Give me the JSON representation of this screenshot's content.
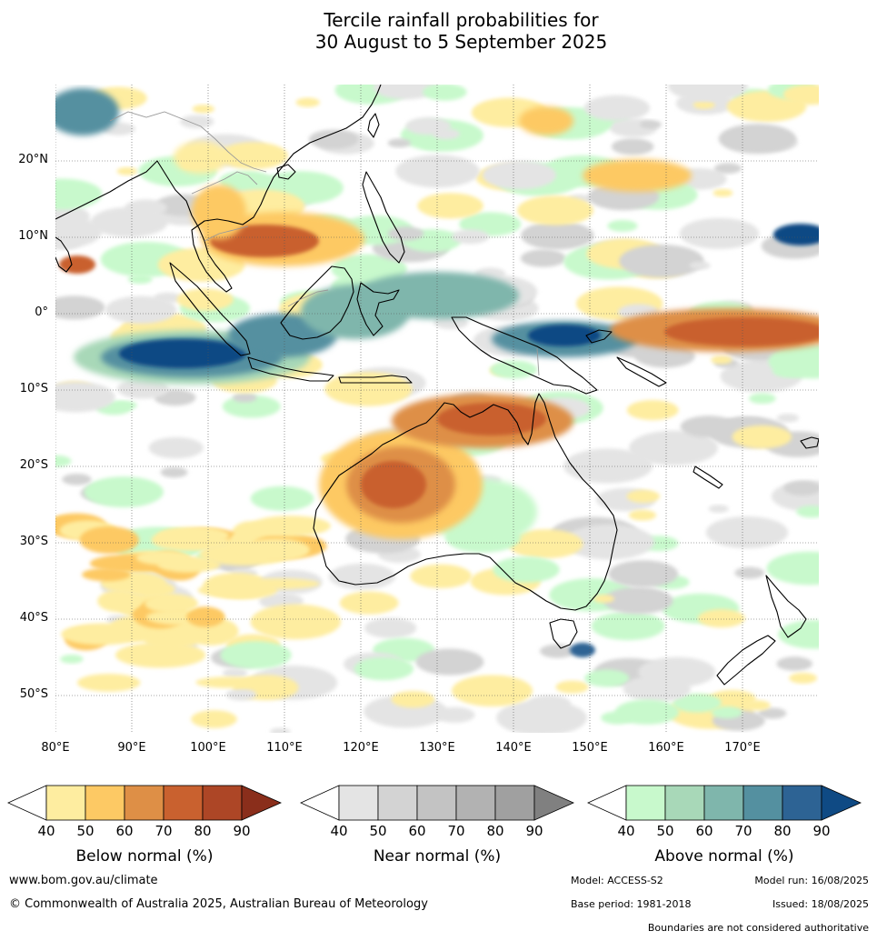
{
  "title": {
    "line1": "Tercile rainfall probabilities for",
    "line2": "30 August to 5 September 2025"
  },
  "map": {
    "lat_labels": [
      "20°N",
      "10°N",
      "0°",
      "10°S",
      "20°S",
      "30°S",
      "40°S",
      "50°S"
    ],
    "lon_labels": [
      "80°E",
      "90°E",
      "100°E",
      "110°E",
      "120°E",
      "130°E",
      "140°E",
      "150°E",
      "160°E",
      "170°E"
    ],
    "colors": {
      "ocean_bg": "#ffffff",
      "coast": "#000000",
      "border": "#999999"
    }
  },
  "legends": [
    {
      "title": "Below normal (%)",
      "ticks": [
        "40",
        "50",
        "60",
        "70",
        "80",
        "90"
      ],
      "colors": [
        "#ffffff",
        "#feeda0",
        "#fdc964",
        "#de8f46",
        "#c9612f",
        "#ad4626",
        "#8a2e1b"
      ]
    },
    {
      "title": "Near normal (%)",
      "ticks": [
        "40",
        "50",
        "60",
        "70",
        "80",
        "90"
      ],
      "colors": [
        "#ffffff",
        "#e4e4e4",
        "#d3d3d3",
        "#c3c3c3",
        "#b2b2b2",
        "#a0a0a0",
        "#808080"
      ]
    },
    {
      "title": "Above normal (%)",
      "ticks": [
        "40",
        "50",
        "60",
        "70",
        "80",
        "90"
      ],
      "colors": [
        "#ffffff",
        "#c8f9cc",
        "#a8d8b8",
        "#7fb6ac",
        "#5490a0",
        "#2d6394",
        "#0f4a84"
      ]
    }
  ],
  "footer": {
    "url": "www.bom.gov.au/climate",
    "copyright": "© Commonwealth of Australia 2025, Australian Bureau of Meteorology",
    "model": "Model: ACCESS-S2",
    "model_run": "Model run: 16/08/2025",
    "base_period": "Base period: 1981-2018",
    "issued": "Issued: 18/08/2025",
    "disclaimer": "Boundaries are not considered authoritative"
  }
}
